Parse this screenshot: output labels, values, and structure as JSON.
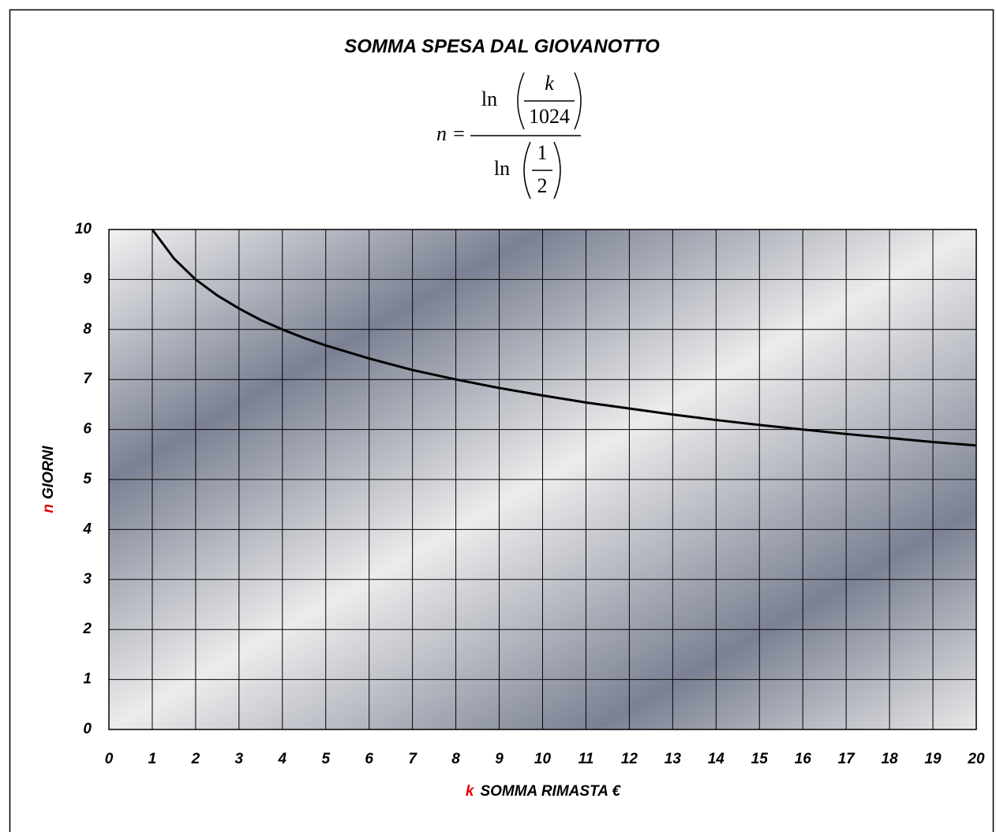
{
  "chart_data": {
    "type": "line",
    "title": "SOMMA SPESA DAL GIOVANOTTO",
    "formula": {
      "lhs": "n =",
      "num_fn": "ln",
      "num_num": "k",
      "num_den": "1024",
      "den_fn": "ln",
      "den_num": "1",
      "den_den": "2"
    },
    "xlabel": {
      "var": "k",
      "text": "SOMMA RIMASTA €"
    },
    "ylabel": {
      "var": "n",
      "text": "GIORNI"
    },
    "x": [
      1,
      1.5,
      2,
      2.5,
      3,
      3.5,
      4,
      4.5,
      5,
      6,
      7,
      8,
      9,
      10,
      11,
      12,
      13,
      14,
      15,
      16,
      17,
      18,
      19,
      20
    ],
    "series": [
      {
        "color": "#000000",
        "values": [
          10,
          9.42,
          9,
          8.68,
          8.42,
          8.19,
          8,
          7.83,
          7.68,
          7.42,
          7.19,
          7,
          6.83,
          6.68,
          6.54,
          6.42,
          6.3,
          6.19,
          6.09,
          6,
          5.91,
          5.83,
          5.75,
          5.68
        ]
      }
    ],
    "xlim": [
      0,
      20
    ],
    "xticks": [
      0,
      1,
      2,
      3,
      4,
      5,
      6,
      7,
      8,
      9,
      10,
      11,
      12,
      13,
      14,
      15,
      16,
      17,
      18,
      19,
      20
    ],
    "ylim": [
      0,
      10
    ],
    "yticks": [
      0,
      1,
      2,
      3,
      4,
      5,
      6,
      7,
      8,
      9,
      10
    ],
    "grid": true
  }
}
